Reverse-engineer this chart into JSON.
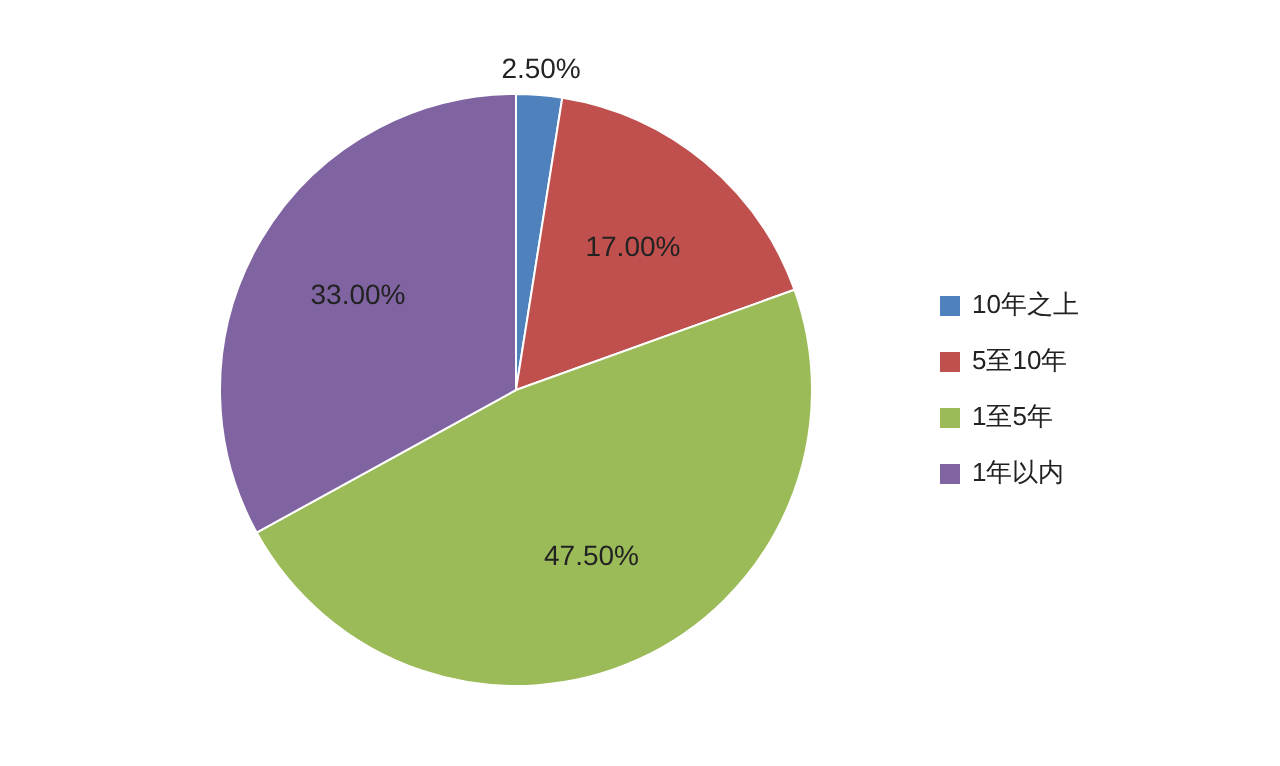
{
  "chart_data": {
    "type": "pie",
    "categories": [
      "10年之上",
      "5至10年",
      "1至5年",
      "1年以内"
    ],
    "values": [
      2.5,
      17,
      47.5,
      33
    ],
    "colors": [
      "#4f81bd",
      "#c0504d",
      "#9bbb59",
      "#8064a2"
    ],
    "value_labels": [
      "2.50%",
      "17.00%",
      "47.50%",
      "33.00%"
    ],
    "legend": "right"
  }
}
